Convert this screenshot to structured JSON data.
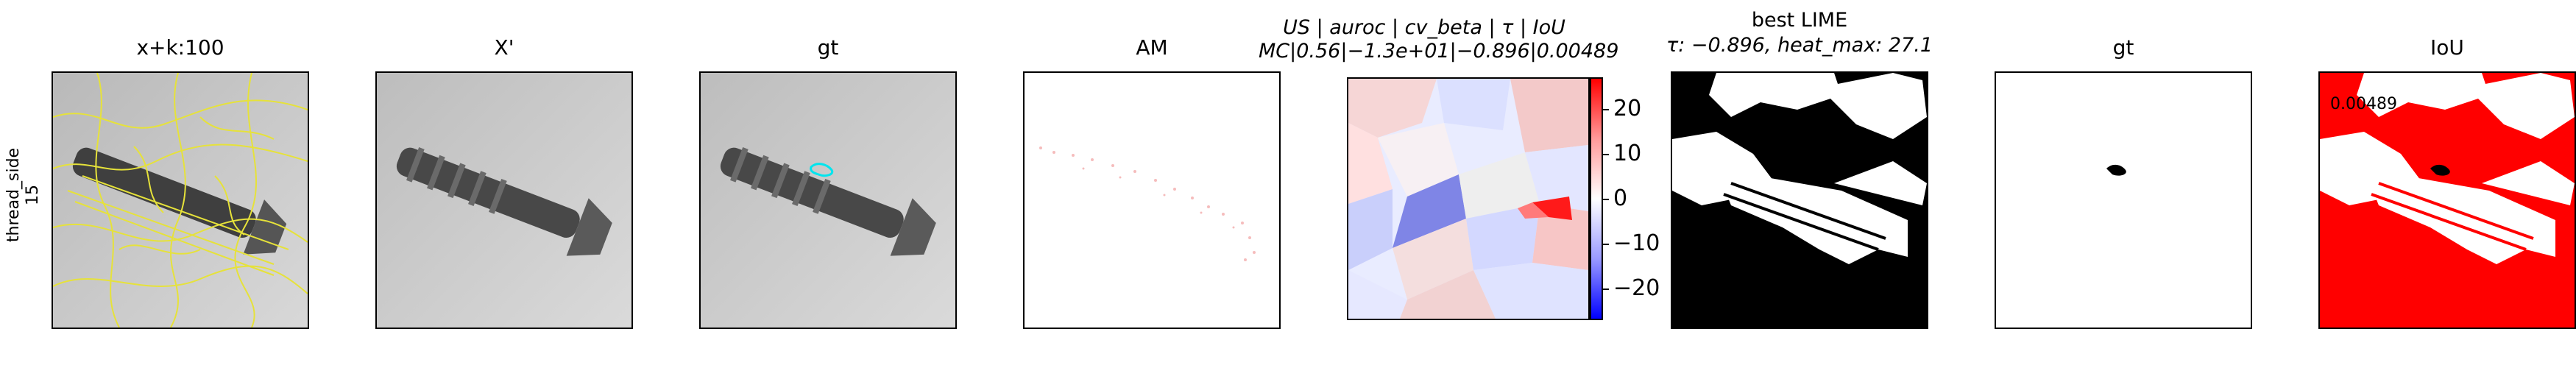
{
  "row_label": {
    "line1": "thread_side",
    "line2": "15"
  },
  "panels": [
    {
      "title": "x+k:100"
    },
    {
      "title": "X'"
    },
    {
      "title": "gt"
    },
    {
      "title": "AM"
    },
    {
      "title_line1": "US | auroc | cv_beta | τ | IoU",
      "title_line2": "MC|0.56|−1.3e+01|−0.896|0.00489"
    },
    {
      "title_line1": "best LIME",
      "title_line2": "τ: −0.896, heat_max: 27.1"
    },
    {
      "title": "gt"
    },
    {
      "title": "IoU",
      "note": "0.00489"
    }
  ],
  "colorbar": {
    "ticks": [
      "20",
      "10",
      "0",
      "−10",
      "−20"
    ],
    "tick_values": [
      20,
      10,
      0,
      -10,
      -20
    ],
    "vmin": -27.1,
    "vmax": 27.1
  },
  "colors": {
    "contour": "#e6e23a",
    "mask_outline": "#00e5ee",
    "iou_red": "#ff0000",
    "screw": "#4a4a4a",
    "bg_gray": "#cfcfcf"
  }
}
